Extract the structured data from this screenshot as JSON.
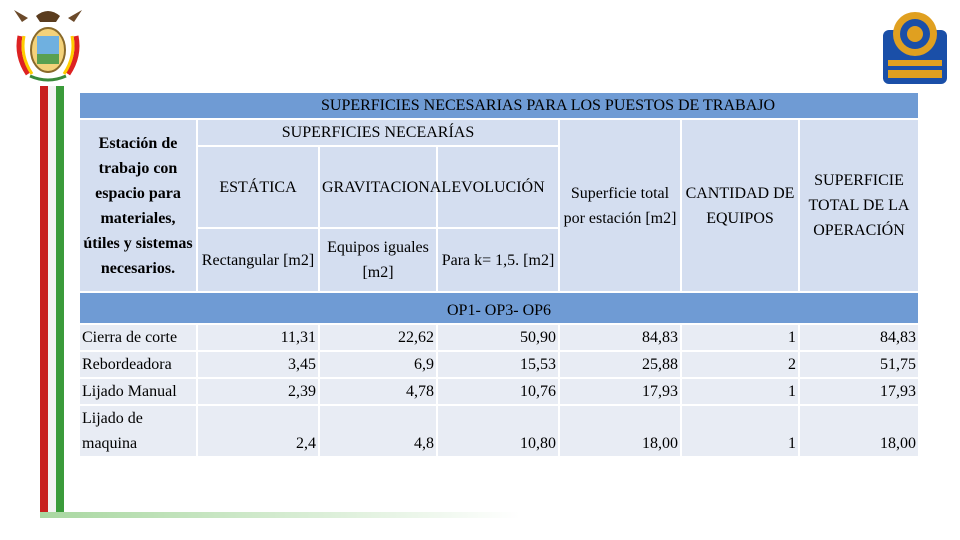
{
  "table": {
    "title": "SUPERFICIES NECESARIAS PARA LOS PUESTOS DE TRABAJO",
    "station_header": "Estación de trabajo con espacio para materiales, útiles y sistemas necesarios.",
    "surfaces_header": "SUPERFICIES NECEARÍAS",
    "static_header": "ESTÁTICA",
    "static_unit": "Rectangular [m2]",
    "gravitational_header": "GRAVITACIONAL",
    "gravitational_unit": "Equipos iguales [m2]",
    "evolution_header": "EVOLUCIÓN",
    "evolution_unit": "Para k= 1,5. [m2]",
    "total_per_station": "Superficie total por estación [m2]",
    "quantity_header": "CANTIDAD DE EQUIPOS",
    "total_operation_header": "SUPERFICIE TOTAL DE LA OPERACIÓN",
    "operations_label": "OP1- OP3- OP6",
    "rows": [
      {
        "name": "Cierra de corte",
        "static": "11,31",
        "grav": "22,62",
        "evol": "50,90",
        "total": "84,83",
        "qty": "1",
        "op_total": "84,83"
      },
      {
        "name": "Rebordeadora",
        "static": "3,45",
        "grav": "6,9",
        "evol": "15,53",
        "total": "25,88",
        "qty": "2",
        "op_total": "51,75"
      },
      {
        "name": "Lijado Manual",
        "static": "2,39",
        "grav": "4,78",
        "evol": "10,76",
        "total": "17,93",
        "qty": "1",
        "op_total": "17,93"
      },
      {
        "name": "Lijado de maquina",
        "static": "2,4",
        "grav": "4,8",
        "evol": "10,80",
        "total": "18,00",
        "qty": "1",
        "op_total": "18,00"
      }
    ]
  },
  "colors": {
    "header_blue": "#6f9bd4",
    "header_light": "#d4def0",
    "row_light": "#e8ecf4",
    "stripe_red": "#c8201e",
    "stripe_green": "#3a9b3a"
  },
  "logos": {
    "left": "ecuador-coat-of-arms-icon",
    "right": "espe-mechatronics-gear-logo"
  }
}
